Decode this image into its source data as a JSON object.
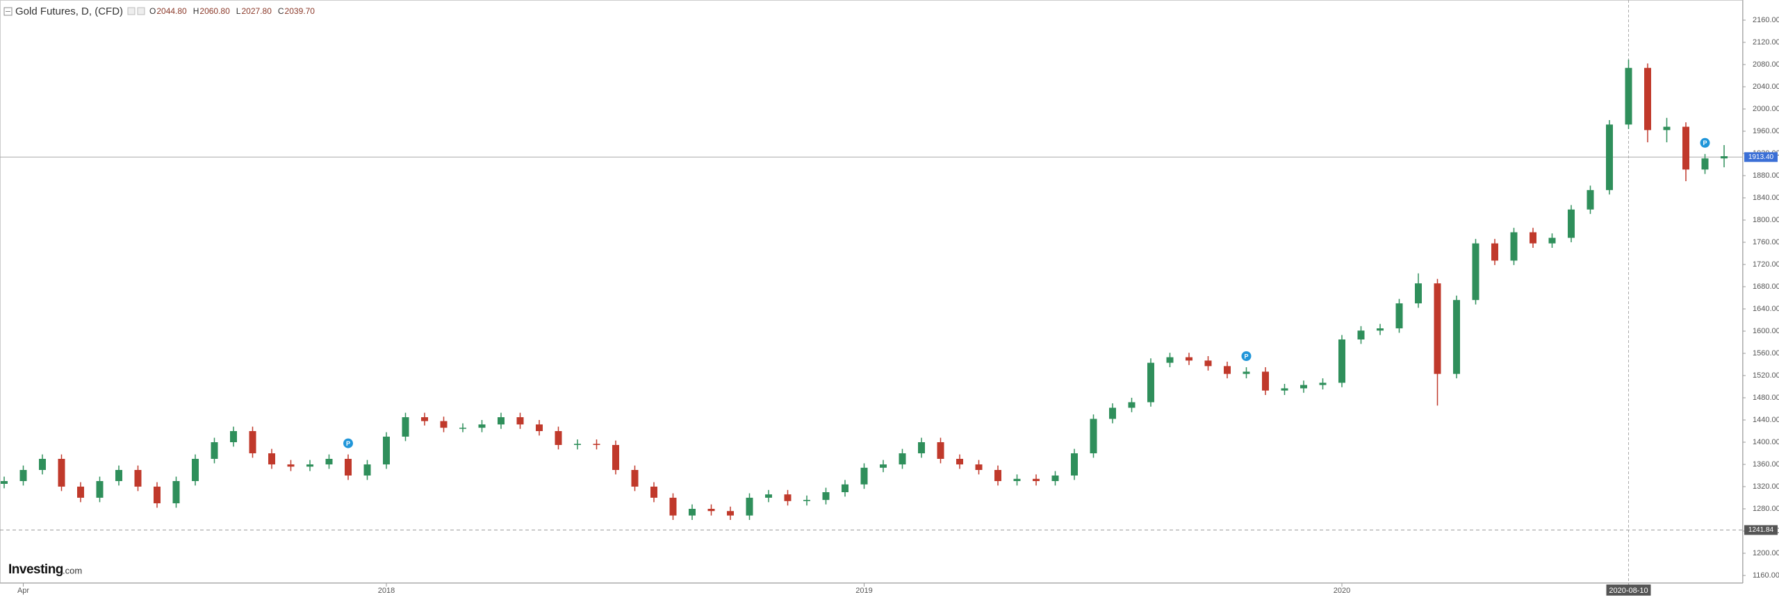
{
  "chart_data": {
    "type": "candlestick",
    "title": "Gold Futures, D, (CFD)",
    "ohlc_header": [
      {
        "label": "O",
        "value": "2044.80"
      },
      {
        "label": "H",
        "value": "2060.80"
      },
      {
        "label": "L",
        "value": "2027.80"
      },
      {
        "label": "C",
        "value": "2039.70"
      }
    ],
    "logo": {
      "brand": "Investing",
      "suffix": ".com"
    },
    "categories": [
      null,
      "Apr",
      null,
      null,
      null,
      null,
      null,
      null,
      null,
      null,
      null,
      null,
      null,
      null,
      null,
      null,
      null,
      null,
      null,
      null,
      "2018",
      null,
      null,
      null,
      null,
      null,
      null,
      null,
      null,
      null,
      null,
      null,
      null,
      null,
      null,
      null,
      null,
      null,
      null,
      null,
      null,
      null,
      null,
      null,
      null,
      "2019",
      null,
      null,
      null,
      null,
      null,
      null,
      null,
      null,
      null,
      null,
      null,
      null,
      null,
      null,
      null,
      null,
      null,
      null,
      null,
      null,
      null,
      null,
      null,
      null,
      "2020",
      null,
      null,
      null,
      null,
      null,
      null,
      null,
      null,
      null,
      null,
      null,
      null,
      null,
      null,
      "2020-08-10",
      null,
      null,
      null,
      null,
      null
    ],
    "open": [
      1325,
      1330,
      1350,
      1370,
      1320,
      1300,
      1330,
      1350,
      1320,
      1290,
      1330,
      1370,
      1400,
      1420,
      1380,
      1360,
      1356,
      1360,
      1370,
      1340,
      1360,
      1410,
      1445,
      1438,
      1426,
      1426,
      1432,
      1445,
      1432,
      1420,
      1395,
      1397,
      1395,
      1350,
      1320,
      1300,
      1268,
      1280,
      1276,
      1268,
      1300,
      1306,
      1294,
      1296,
      1310,
      1324,
      1354,
      1360,
      1380,
      1400,
      1370,
      1360,
      1350,
      1330,
      1334,
      1330,
      1340,
      1380,
      1442,
      1462,
      1472,
      1543,
      1553,
      1547,
      1537,
      1523,
      1527,
      1493,
      1497,
      1503,
      1507,
      1585,
      1601,
      1605,
      1650,
      1686,
      1523,
      1656,
      1758,
      1727,
      1778,
      1758,
      1768,
      1819,
      1854,
      1972,
      2074,
      1962,
      1968,
      1891,
      1911
    ],
    "high": [
      1338,
      1358,
      1378,
      1378,
      1328,
      1338,
      1358,
      1358,
      1328,
      1338,
      1378,
      1408,
      1428,
      1428,
      1388,
      1368,
      1368,
      1378,
      1378,
      1368,
      1418,
      1453,
      1453,
      1446,
      1434,
      1440,
      1453,
      1453,
      1440,
      1428,
      1405,
      1405,
      1403,
      1358,
      1328,
      1308,
      1288,
      1288,
      1284,
      1308,
      1314,
      1314,
      1304,
      1318,
      1332,
      1362,
      1368,
      1388,
      1408,
      1408,
      1378,
      1368,
      1358,
      1342,
      1342,
      1348,
      1388,
      1450,
      1470,
      1480,
      1551,
      1561,
      1561,
      1555,
      1545,
      1535,
      1535,
      1505,
      1511,
      1515,
      1593,
      1609,
      1613,
      1658,
      1704,
      1694,
      1664,
      1766,
      1766,
      1786,
      1786,
      1776,
      1827,
      1862,
      1980,
      2089,
      2082,
      1984,
      1976,
      1919,
      1935
    ],
    "low": [
      1317,
      1322,
      1342,
      1312,
      1292,
      1292,
      1322,
      1312,
      1282,
      1282,
      1322,
      1362,
      1392,
      1372,
      1352,
      1348,
      1348,
      1352,
      1332,
      1332,
      1352,
      1402,
      1430,
      1418,
      1418,
      1418,
      1424,
      1424,
      1412,
      1387,
      1387,
      1387,
      1342,
      1312,
      1292,
      1260,
      1260,
      1268,
      1260,
      1260,
      1292,
      1286,
      1286,
      1288,
      1302,
      1316,
      1346,
      1352,
      1372,
      1362,
      1352,
      1342,
      1322,
      1322,
      1322,
      1322,
      1332,
      1372,
      1434,
      1454,
      1464,
      1535,
      1539,
      1529,
      1515,
      1515,
      1485,
      1485,
      1489,
      1495,
      1499,
      1577,
      1593,
      1597,
      1642,
      1466,
      1515,
      1648,
      1719,
      1719,
      1750,
      1750,
      1760,
      1811,
      1846,
      1964,
      1940,
      1940,
      1870,
      1883,
      1895
    ],
    "close": [
      1330,
      1350,
      1370,
      1320,
      1300,
      1330,
      1350,
      1320,
      1290,
      1330,
      1370,
      1400,
      1420,
      1380,
      1360,
      1356,
      1360,
      1370,
      1340,
      1360,
      1410,
      1445,
      1438,
      1426,
      1426,
      1432,
      1445,
      1432,
      1420,
      1395,
      1397,
      1395,
      1350,
      1320,
      1300,
      1268,
      1280,
      1276,
      1268,
      1300,
      1306,
      1294,
      1296,
      1310,
      1324,
      1354,
      1360,
      1380,
      1400,
      1370,
      1360,
      1350,
      1330,
      1334,
      1330,
      1340,
      1380,
      1442,
      1462,
      1472,
      1543,
      1553,
      1547,
      1537,
      1523,
      1527,
      1493,
      1497,
      1503,
      1507,
      1585,
      1601,
      1605,
      1650,
      1686,
      1523,
      1656,
      1758,
      1727,
      1778,
      1758,
      1768,
      1819,
      1854,
      1972,
      2074,
      1962,
      1968,
      1891,
      1911,
      1915
    ],
    "up_color": "#2f8f5b",
    "down_color": "#c0392b",
    "ylim": [
      1140,
      2180
    ],
    "yticks": [
      {
        "value": 1160,
        "label": "1160.00"
      },
      {
        "value": 1200,
        "label": "1200.00"
      },
      {
        "value": 1240,
        "label": "1240.00"
      },
      {
        "value": 1280,
        "label": "1280.00"
      },
      {
        "value": 1320,
        "label": "1320.00"
      },
      {
        "value": 1360,
        "label": "1360.00"
      },
      {
        "value": 1400,
        "label": "1400.00"
      },
      {
        "value": 1440,
        "label": "1440.00"
      },
      {
        "value": 1480,
        "label": "1480.00"
      },
      {
        "value": 1520,
        "label": "1520.00"
      },
      {
        "value": 1560,
        "label": "1560.00"
      },
      {
        "value": 1600,
        "label": "1600.00"
      },
      {
        "value": 1640,
        "label": "1640.00"
      },
      {
        "value": 1680,
        "label": "1680.00"
      },
      {
        "value": 1720,
        "label": "1720.00"
      },
      {
        "value": 1760,
        "label": "1760.00"
      },
      {
        "value": 1800,
        "label": "1800.00"
      },
      {
        "value": 1840,
        "label": "1840.00"
      },
      {
        "value": 1880,
        "label": "1880.00"
      },
      {
        "value": 1920,
        "label": "1920.00"
      },
      {
        "value": 1960,
        "label": "1960.00"
      },
      {
        "value": 2000,
        "label": "2000.00"
      },
      {
        "value": 2040,
        "label": "2040.00"
      },
      {
        "value": 2080,
        "label": "2080.00"
      },
      {
        "value": 2120,
        "label": "2120.00"
      },
      {
        "value": 2160,
        "label": "2160.00"
      }
    ],
    "price_line": {
      "value": 1913.4,
      "label": "1913.40",
      "color": "#3b6fd6"
    },
    "reference_line": {
      "value": 1241.84,
      "label": "1241.84",
      "color": "#555"
    },
    "crosshair": true,
    "events": [
      {
        "at": 18,
        "label": "P"
      },
      {
        "at": 65,
        "label": "P"
      },
      {
        "at": 89,
        "label": "P"
      }
    ],
    "grid": false
  }
}
